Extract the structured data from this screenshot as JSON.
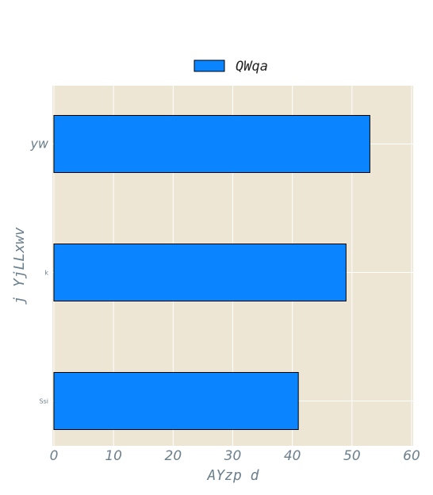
{
  "chart_data": {
    "type": "bar",
    "orientation": "horizontal",
    "categories": [
      "Ssi",
      "k",
      "yw"
    ],
    "series": [
      {
        "name": "QWqa",
        "values": [
          41,
          49,
          53
        ],
        "color": "#0a84ff"
      }
    ],
    "xlabel": "AYzp d",
    "ylabel": "j YjLLxwv",
    "xlim": [
      0,
      60
    ],
    "xticks": [
      "0",
      "10",
      "20",
      "30",
      "40",
      "50",
      "60"
    ],
    "grid": true,
    "legend_position": "top-center",
    "plot_background": "#ede6d5",
    "grid_color": "#ffffff",
    "bar_edge_color": "#000000"
  }
}
